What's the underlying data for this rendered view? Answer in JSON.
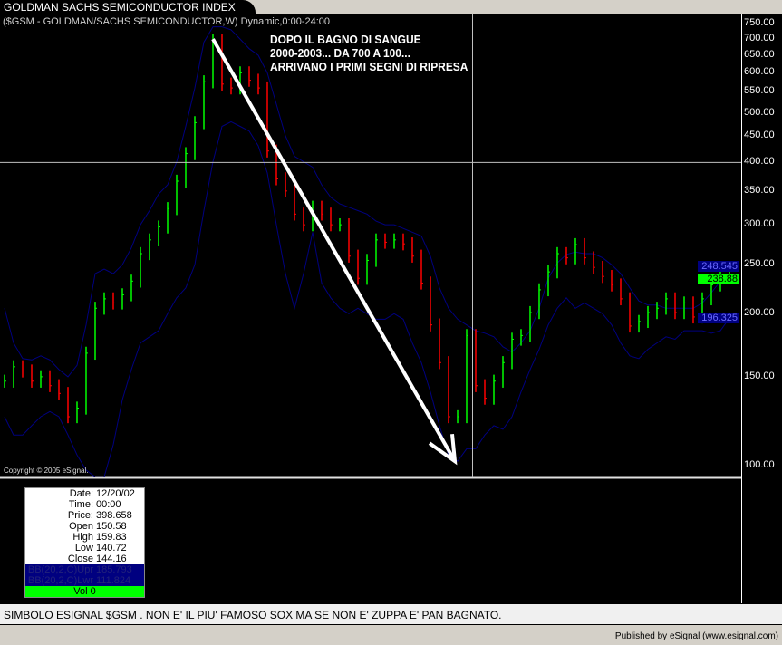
{
  "window": {
    "tab_title": "GOLDMAN SACHS SEMICONDUCTOR INDEX"
  },
  "chart_header": "($GSM - GOLDMAN/SACHS SEMICONDUCTOR,W) Dynamic,0:00-24:00",
  "annotation": [
    "DOPO IL BAGNO DI SANGUE",
    "2000-2003... DA 700 A 100...",
    "ARRIVANO I PRIMI SEGNI DI RIPRESA"
  ],
  "copyright": "Copyright © 2005 eSignal.",
  "data_window": {
    "rows": [
      {
        "k": "Date:",
        "v": "12/20/02"
      },
      {
        "k": "Time:",
        "v": "00:00"
      },
      {
        "k": "Price:",
        "v": "398.658"
      },
      {
        "k": "Open",
        "v": "150.58"
      },
      {
        "k": "High",
        "v": "159.83"
      },
      {
        "k": "Low",
        "v": "140.72"
      },
      {
        "k": "Close",
        "v": "144.16"
      }
    ],
    "bb": [
      {
        "k": "BB(20,2,C)Upr",
        "v": "185.793"
      },
      {
        "k": "BB(20,2,C)Lwr",
        "v": "111.824"
      }
    ],
    "vol": {
      "k": "Vol",
      "v": "0"
    }
  },
  "bottom_text": "SIMBOLO ESIGNAL $GSM . NON E' IL PIU' FAMOSO SOX MA SE NON E' ZUPPA E' PAN BAGNATO.",
  "footer": "Published by eSignal (www.esignal.com)",
  "colors": {
    "background": "#000000",
    "up": "#00ff00",
    "down": "#ff0000",
    "bands": "#000080",
    "arrow": "#ffffff",
    "crosshair": "#c0c0c0"
  },
  "chart_data": {
    "type": "bar",
    "scale": "log",
    "ylim": [
      95,
      760
    ],
    "y_ticks": [
      "750.00",
      "700.00",
      "650.00",
      "600.00",
      "550.00",
      "500.00",
      "450.00",
      "400.00",
      "350.00",
      "300.00",
      "250.00",
      "200.00",
      "150.00",
      "100.00"
    ],
    "y_tick_values": [
      750,
      700,
      650,
      600,
      550,
      500,
      450,
      400,
      350,
      300,
      250,
      200,
      150,
      100
    ],
    "price_labels": [
      {
        "text": "248.545",
        "value": 248.545,
        "color": "#000080",
        "text_color": "#6a6aff"
      },
      {
        "text": "238.88",
        "value": 238.88,
        "color": "#00ff00",
        "text_color": "#000000"
      },
      {
        "text": "196.325",
        "value": 196.325,
        "color": "#000080",
        "text_color": "#6a6aff"
      }
    ],
    "crosshair_price": 398.658,
    "close": [
      147,
      157,
      154,
      147,
      150,
      144,
      139,
      125,
      130,
      167,
      205,
      214,
      210,
      218,
      232,
      263,
      280,
      297,
      323,
      366,
      415,
      478,
      576,
      694,
      570,
      560,
      600,
      580,
      560,
      420,
      370,
      350,
      315,
      300,
      325,
      315,
      300,
      300,
      260,
      235,
      255,
      280,
      277,
      280,
      275,
      260,
      230,
      190,
      160,
      125,
      125,
      181,
      144,
      136,
      147,
      160,
      178,
      181,
      201,
      223,
      242,
      263,
      258,
      274,
      258,
      247,
      237,
      228,
      214,
      189,
      193,
      201,
      205,
      214,
      201,
      210,
      197,
      214,
      228,
      237,
      239
    ],
    "bb_upper": [
      205,
      175,
      163,
      162,
      165,
      162,
      155,
      150,
      158,
      190,
      240,
      245,
      240,
      250,
      270,
      300,
      320,
      345,
      360,
      400,
      470,
      560,
      690,
      740,
      740,
      730,
      700,
      670,
      650,
      600,
      520,
      450,
      410,
      400,
      390,
      360,
      340,
      330,
      325,
      320,
      315,
      305,
      300,
      300,
      295,
      290,
      285,
      260,
      225,
      205,
      195,
      190,
      185,
      183,
      180,
      172,
      168,
      175,
      185,
      205,
      235,
      252,
      262,
      265,
      263,
      263,
      258,
      250,
      240,
      225,
      212,
      208,
      208,
      205,
      205,
      205,
      205,
      210,
      220,
      232,
      230
    ],
    "bb_lower": [
      125,
      115,
      115,
      120,
      125,
      128,
      125,
      115,
      105,
      98,
      95,
      95,
      110,
      135,
      155,
      175,
      180,
      185,
      200,
      215,
      225,
      250,
      320,
      400,
      470,
      480,
      470,
      460,
      430,
      380,
      300,
      240,
      205,
      240,
      290,
      230,
      215,
      205,
      200,
      205,
      200,
      195,
      195,
      200,
      195,
      175,
      160,
      140,
      120,
      105,
      102,
      108,
      108,
      115,
      120,
      118,
      125,
      140,
      155,
      170,
      190,
      205,
      215,
      205,
      210,
      205,
      200,
      190,
      175,
      165,
      163,
      170,
      175,
      180,
      178,
      185,
      185,
      185,
      183,
      185,
      196
    ],
    "arrow": {
      "from": 700,
      "to": 102
    }
  }
}
